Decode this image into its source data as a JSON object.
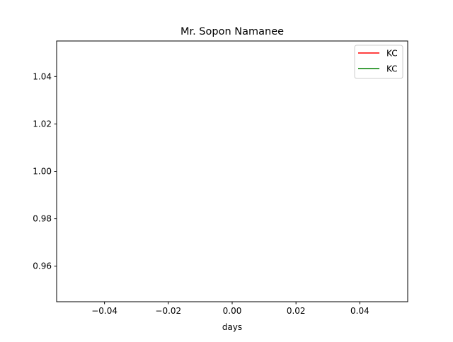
{
  "chart_data": {
    "type": "line",
    "title": "Mr. Sopon Namanee",
    "xlabel": "days",
    "ylabel": "",
    "xlim": [
      -0.055,
      0.055
    ],
    "ylim": [
      0.945,
      1.055
    ],
    "xticks": [
      -0.04,
      -0.02,
      0.0,
      0.02,
      0.04
    ],
    "xtick_labels": [
      "−0.04",
      "−0.02",
      "0.00",
      "0.02",
      "0.04"
    ],
    "yticks": [
      0.96,
      0.98,
      1.0,
      1.02,
      1.04
    ],
    "ytick_labels": [
      "0.96",
      "0.98",
      "1.00",
      "1.02",
      "1.04"
    ],
    "grid": false,
    "legend_position": "upper right",
    "series": [
      {
        "name": "KC",
        "color": "#ff0000",
        "x": [],
        "y": []
      },
      {
        "name": "KC",
        "color": "#008000",
        "x": [],
        "y": []
      }
    ]
  }
}
